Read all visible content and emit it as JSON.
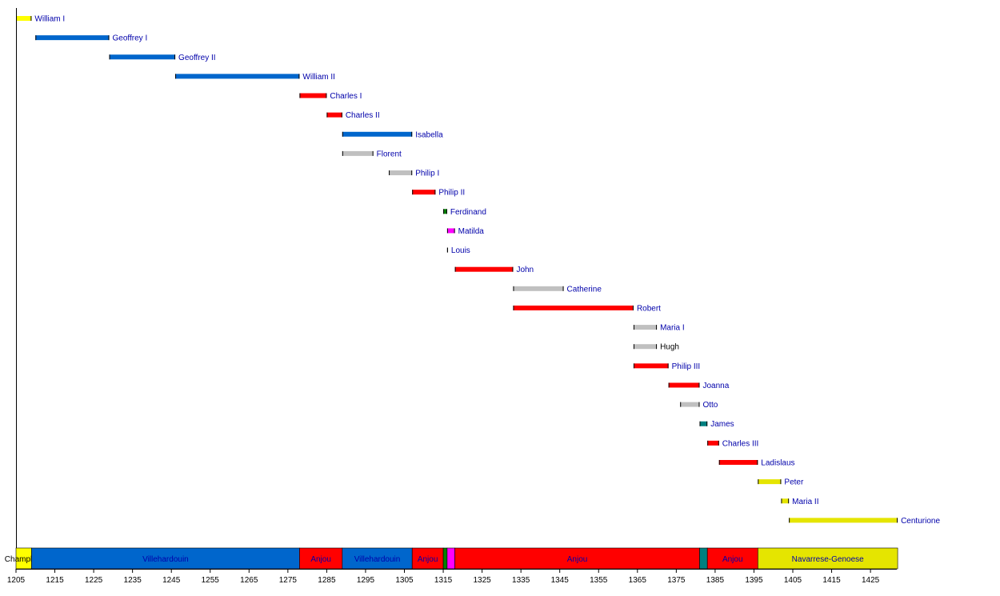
{
  "chart_data": {
    "type": "timeline",
    "xlim": [
      1205,
      1435
    ],
    "ticks": [
      1205,
      1215,
      1225,
      1235,
      1245,
      1255,
      1265,
      1275,
      1285,
      1295,
      1305,
      1315,
      1325,
      1335,
      1345,
      1355,
      1365,
      1375,
      1385,
      1395,
      1405,
      1415,
      1425
    ],
    "colors": {
      "champlitte": "#ffff00",
      "villehardouin": "#0066cc",
      "anjou": "#ff0000",
      "other": "#c0c0c0",
      "majorca": "#008000",
      "hainaut": "#ff00ff",
      "navarrese": "#008080",
      "genoese": "#e5e500",
      "link_text": "#0000aa",
      "plain_text": "#000000"
    },
    "rulers": [
      {
        "name": "William I",
        "start": 1205,
        "end": 1209,
        "color": "champlitte",
        "link": true
      },
      {
        "name": "Geoffrey I",
        "start": 1210,
        "end": 1229,
        "color": "villehardouin",
        "link": true
      },
      {
        "name": "Geoffrey II",
        "start": 1229,
        "end": 1246,
        "color": "villehardouin",
        "link": true
      },
      {
        "name": "William II",
        "start": 1246,
        "end": 1278,
        "color": "villehardouin",
        "link": true
      },
      {
        "name": "Charles I",
        "start": 1278,
        "end": 1285,
        "color": "anjou",
        "link": true
      },
      {
        "name": "Charles II",
        "start": 1285,
        "end": 1289,
        "color": "anjou",
        "link": true
      },
      {
        "name": "Isabella",
        "start": 1289,
        "end": 1307,
        "color": "villehardouin",
        "link": true
      },
      {
        "name": "Florent",
        "start": 1289,
        "end": 1297,
        "color": "other",
        "link": true
      },
      {
        "name": "Philip I",
        "start": 1301,
        "end": 1307,
        "color": "other",
        "link": true
      },
      {
        "name": "Philip II",
        "start": 1307,
        "end": 1313,
        "color": "anjou",
        "link": true
      },
      {
        "name": "Ferdinand",
        "start": 1315,
        "end": 1316,
        "color": "majorca",
        "link": true
      },
      {
        "name": "Matilda",
        "start": 1316,
        "end": 1318,
        "color": "hainaut",
        "link": true
      },
      {
        "name": "Louis",
        "start": 1316,
        "end": 1316,
        "color": "other",
        "link": true
      },
      {
        "name": "John",
        "start": 1318,
        "end": 1333,
        "color": "anjou",
        "link": true
      },
      {
        "name": "Catherine",
        "start": 1333,
        "end": 1346,
        "color": "other",
        "link": true
      },
      {
        "name": "Robert",
        "start": 1333,
        "end": 1364,
        "color": "anjou",
        "link": true
      },
      {
        "name": "Maria I",
        "start": 1364,
        "end": 1370,
        "color": "other",
        "link": true
      },
      {
        "name": "Hugh",
        "start": 1364,
        "end": 1370,
        "color": "other",
        "link": false
      },
      {
        "name": "Philip III",
        "start": 1364,
        "end": 1373,
        "color": "anjou",
        "link": true
      },
      {
        "name": "Joanna",
        "start": 1373,
        "end": 1381,
        "color": "anjou",
        "link": true
      },
      {
        "name": "Otto",
        "start": 1376,
        "end": 1381,
        "color": "other",
        "link": true
      },
      {
        "name": "James",
        "start": 1381,
        "end": 1383,
        "color": "navarrese",
        "link": true
      },
      {
        "name": "Charles III",
        "start": 1383,
        "end": 1386,
        "color": "anjou",
        "link": true
      },
      {
        "name": "Ladislaus",
        "start": 1386,
        "end": 1396,
        "color": "anjou",
        "link": true
      },
      {
        "name": "Peter",
        "start": 1396,
        "end": 1402,
        "color": "genoese",
        "link": true
      },
      {
        "name": "Maria II",
        "start": 1402,
        "end": 1404,
        "color": "genoese",
        "link": true
      },
      {
        "name": "Centurione",
        "start": 1404,
        "end": 1432,
        "color": "genoese",
        "link": true
      }
    ],
    "dynasties": [
      {
        "name": "Champlitte",
        "start": 1205,
        "end": 1209,
        "color": "champlitte"
      },
      {
        "name": "Villehardouin",
        "start": 1209,
        "end": 1278,
        "color": "villehardouin"
      },
      {
        "name": "Anjou",
        "start": 1278,
        "end": 1289,
        "color": "anjou"
      },
      {
        "name": "Villehardouin",
        "start": 1289,
        "end": 1307,
        "color": "villehardouin"
      },
      {
        "name": "Anjou",
        "start": 1307,
        "end": 1315,
        "color": "anjou"
      },
      {
        "name": "",
        "start": 1315,
        "end": 1316,
        "color": "majorca"
      },
      {
        "name": "",
        "start": 1316,
        "end": 1318,
        "color": "hainaut"
      },
      {
        "name": "Anjou",
        "start": 1318,
        "end": 1381,
        "color": "anjou"
      },
      {
        "name": "",
        "start": 1381,
        "end": 1383,
        "color": "navarrese"
      },
      {
        "name": "Anjou",
        "start": 1383,
        "end": 1396,
        "color": "anjou"
      },
      {
        "name": "Navarrese-Genoese",
        "start": 1396,
        "end": 1432,
        "color": "genoese"
      }
    ]
  }
}
